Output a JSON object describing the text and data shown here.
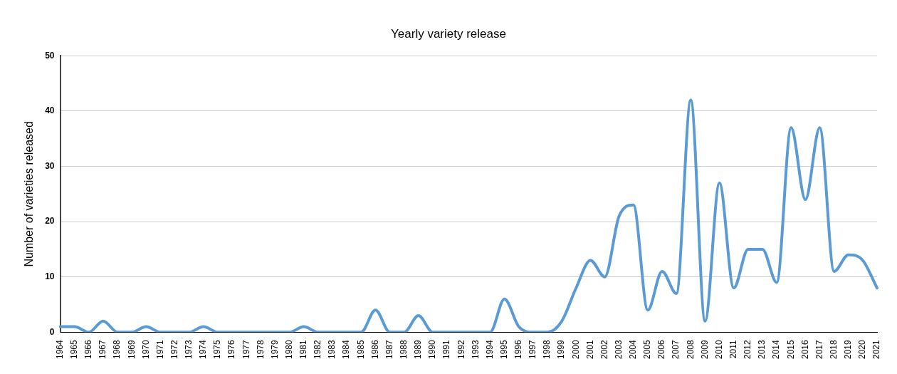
{
  "chart_data": {
    "type": "line",
    "title": "Yearly variety release",
    "ylabel": "Number of varieties released",
    "categories": [
      "1964",
      "1965",
      "1966",
      "1967",
      "1968",
      "1969",
      "1970",
      "1971",
      "1972",
      "1973",
      "1974",
      "1975",
      "1976",
      "1977",
      "1978",
      "1979",
      "1980",
      "1981",
      "1982",
      "1983",
      "1984",
      "1985",
      "1986",
      "1987",
      "1988",
      "1989",
      "1990",
      "1991",
      "1992",
      "1993",
      "1994",
      "1995",
      "1996",
      "1997",
      "1998",
      "1999",
      "2000",
      "2001",
      "2002",
      "2003",
      "2004",
      "2005",
      "2006",
      "2007",
      "2008",
      "2009",
      "2010",
      "2011",
      "2012",
      "2013",
      "2014",
      "2015",
      "2016",
      "2017",
      "2018",
      "2019",
      "2020",
      "2021"
    ],
    "series": [
      {
        "color": "#5b9bd5",
        "values": [
          1,
          1,
          0,
          2,
          0,
          0,
          1,
          0,
          0,
          0,
          1,
          0,
          0,
          0,
          0,
          0,
          0,
          1,
          0,
          0,
          0,
          0,
          4,
          0,
          0,
          3,
          0,
          0,
          0,
          0,
          0,
          6,
          1,
          0,
          0,
          2,
          8,
          13,
          10,
          21,
          23,
          4,
          11,
          7,
          42,
          2,
          27,
          8,
          15,
          15,
          9,
          37,
          24,
          37,
          11,
          14,
          13,
          8
        ]
      }
    ],
    "ylim": [
      0,
      50
    ],
    "yticks": [
      0,
      10,
      20,
      30,
      40,
      50
    ],
    "grid": "y",
    "legend": false,
    "marker": "none",
    "line_style": "solid"
  }
}
